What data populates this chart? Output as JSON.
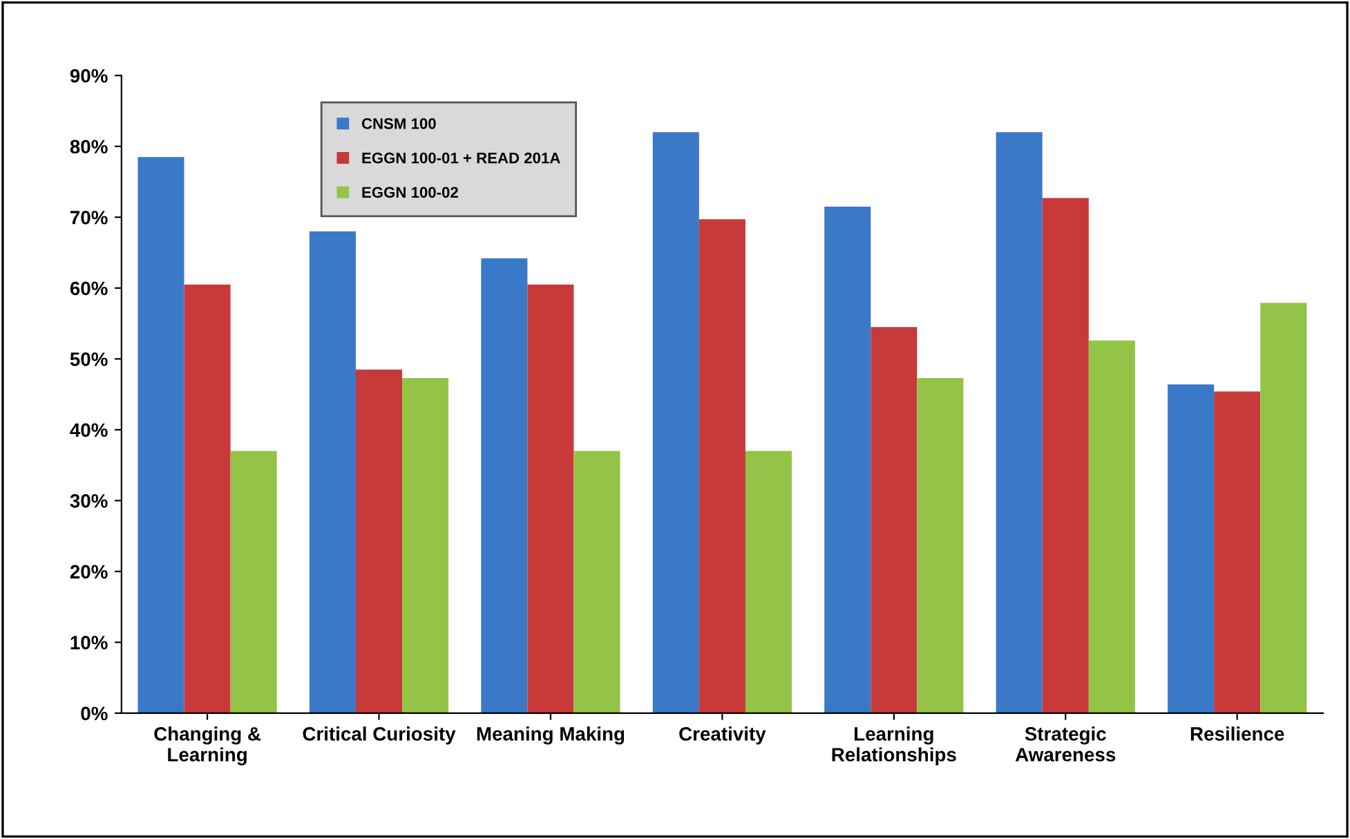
{
  "chart_data": {
    "type": "bar",
    "categories": [
      "Changing & Learning",
      "Critical Curiosity",
      "Meaning Making",
      "Creativity",
      "Learning Relationships",
      "Strategic Awareness",
      "Resilience"
    ],
    "series": [
      {
        "name": "CNSM 100",
        "color": "#3a78c8",
        "values": [
          78.5,
          68,
          64.2,
          82,
          71.5,
          82,
          46.4
        ]
      },
      {
        "name": "EGGN 100-01 + READ 201A",
        "color": "#c8393a",
        "values": [
          60.5,
          48.5,
          60.5,
          69.7,
          54.5,
          72.7,
          45.4
        ]
      },
      {
        "name": "EGGN 100-02",
        "color": "#94c447",
        "values": [
          37,
          47.3,
          37,
          37,
          47.3,
          52.6,
          57.9
        ]
      }
    ],
    "ylim": [
      0,
      90
    ],
    "yticks": [
      {
        "value": 0,
        "label": "0%"
      },
      {
        "value": 10,
        "label": "10%"
      },
      {
        "value": 20,
        "label": "20%"
      },
      {
        "value": 30,
        "label": "30%"
      },
      {
        "value": 40,
        "label": "40%"
      },
      {
        "value": 50,
        "label": "50%"
      },
      {
        "value": 60,
        "label": "60%"
      },
      {
        "value": 70,
        "label": "70%"
      },
      {
        "value": 80,
        "label": "80%"
      },
      {
        "value": 90,
        "label": "90%"
      }
    ],
    "legend": "top left"
  }
}
